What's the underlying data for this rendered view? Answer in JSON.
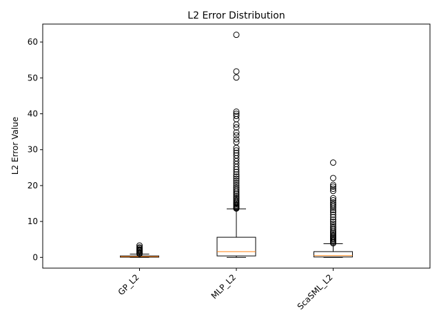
{
  "chart_data": {
    "type": "box",
    "title": "L2 Error Distribution",
    "xlabel": "",
    "ylabel": "L2 Error Value",
    "ylim": [
      -3,
      65
    ],
    "yticks": [
      0,
      10,
      20,
      30,
      40,
      50,
      60
    ],
    "grid": false,
    "categories": [
      "GP_L2",
      "MLP_L2",
      "ScaSML_L2"
    ],
    "boxes": [
      {
        "name": "GP_L2",
        "whisker_low": 0.0,
        "q1": 0.05,
        "median": 0.2,
        "q3": 0.4,
        "whisker_high": 0.9,
        "outliers": [
          1.0,
          1.2,
          1.5,
          1.8,
          2.0,
          2.2,
          2.5,
          2.8,
          3.3
        ]
      },
      {
        "name": "MLP_L2",
        "whisker_low": 0.0,
        "q1": 0.4,
        "median": 1.6,
        "q3": 5.6,
        "whisker_high": 13.5,
        "outliers": [
          13.6,
          13.8,
          14.0,
          14.3,
          14.6,
          14.9,
          15.2,
          15.5,
          15.9,
          16.3,
          16.7,
          17.1,
          17.6,
          18.0,
          18.5,
          19.0,
          19.5,
          20.1,
          20.7,
          21.3,
          21.9,
          22.5,
          23.1,
          23.8,
          24.5,
          25.2,
          26.0,
          26.8,
          27.6,
          28.4,
          29.1,
          29.8,
          30.5,
          32.1,
          32.9,
          34.0,
          34.8,
          36.2,
          37.0,
          38.5,
          39.4,
          40.0,
          40.6,
          50.1,
          51.8,
          62.0
        ]
      },
      {
        "name": "ScaSML_L2",
        "whisker_low": 0.0,
        "q1": 0.1,
        "median": 0.5,
        "q3": 1.6,
        "whisker_high": 3.8,
        "outliers": [
          3.9,
          4.2,
          4.5,
          4.8,
          5.1,
          5.4,
          5.7,
          6.0,
          6.4,
          6.8,
          7.2,
          7.7,
          8.2,
          8.7,
          9.3,
          9.9,
          10.5,
          11.2,
          11.9,
          12.6,
          13.2,
          13.8,
          14.3,
          14.8,
          15.3,
          15.9,
          16.5,
          18.5,
          19.1,
          19.7,
          20.2,
          22.1,
          26.4
        ]
      }
    ],
    "colors": {
      "box": "#000000",
      "median": "#ff7f0e",
      "outlier": "#000000"
    }
  }
}
